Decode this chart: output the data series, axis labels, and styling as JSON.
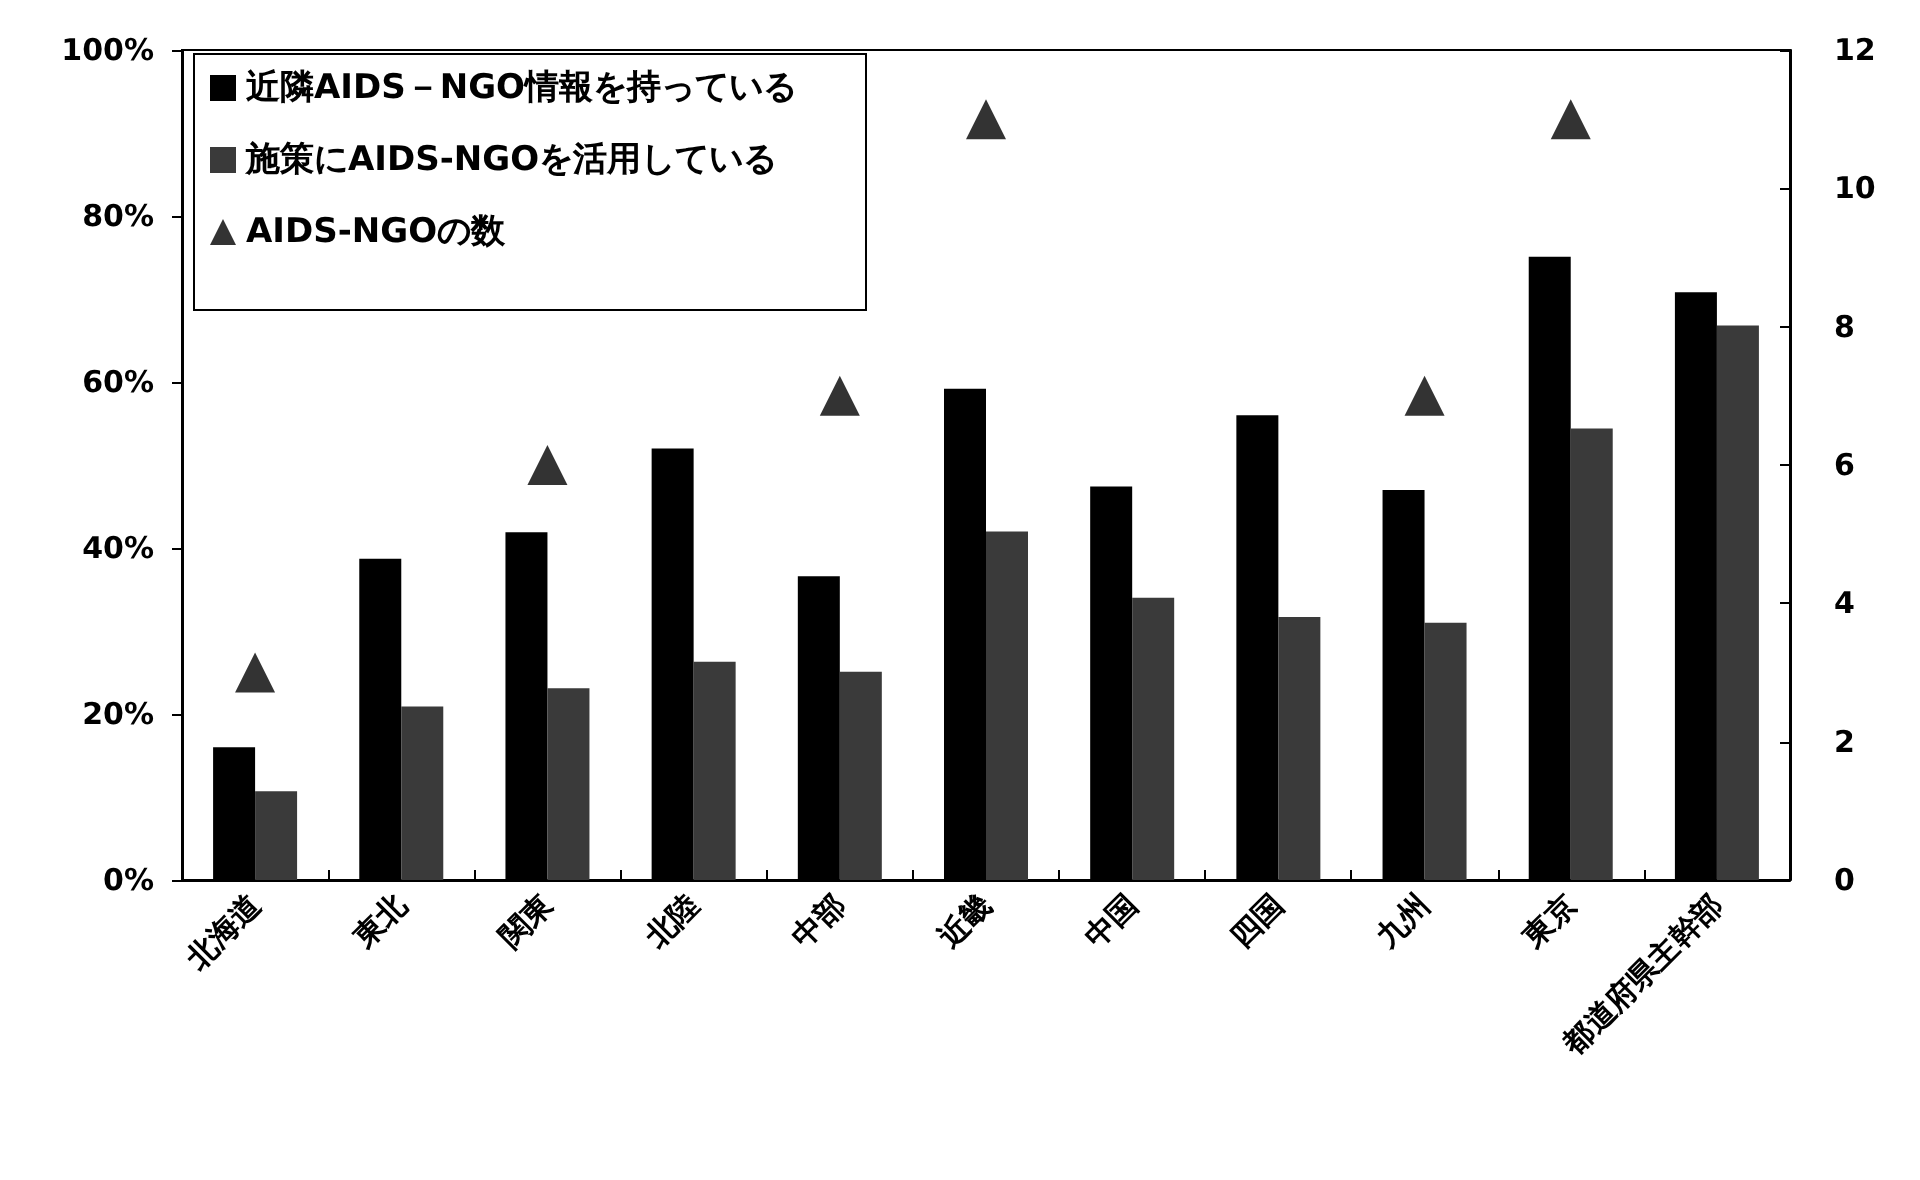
{
  "chart_data": {
    "type": "bar",
    "categories": [
      "北海道",
      "東北",
      "関東",
      "北陸",
      "中部",
      "近畿",
      "中国",
      "四国",
      "九州",
      "東京",
      "都道府県主幹部"
    ],
    "series": [
      {
        "name": "近隣AIDS－NGO情報を持っている",
        "color": "#000000",
        "values": [
          16,
          38.7,
          41.9,
          52,
          36.6,
          59.2,
          47.4,
          56,
          47,
          75.1,
          70.8
        ]
      },
      {
        "name": "施策にAIDS-NGOを活用している",
        "color": "#3a3a3a",
        "values": [
          10.7,
          20.9,
          23.1,
          26.3,
          25.1,
          42,
          34,
          31.7,
          31,
          54.4,
          66.8
        ]
      },
      {
        "name": "AIDS-NGOの数",
        "type": "scatter",
        "axis": "y2",
        "marker": "triangle",
        "color": "#000000",
        "values": [
          3,
          null,
          6,
          null,
          7,
          11,
          null,
          null,
          7,
          11,
          null
        ]
      }
    ],
    "ylim": [
      0,
      100
    ],
    "yticks": [
      {
        "value": 0,
        "label": "0%"
      },
      {
        "value": 20,
        "label": "20%"
      },
      {
        "value": 40,
        "label": "40%"
      },
      {
        "value": 60,
        "label": "60%"
      },
      {
        "value": 80,
        "label": "80%"
      },
      {
        "value": 100,
        "label": "100%"
      }
    ],
    "y2lim": [
      0,
      12
    ],
    "y2ticks": [
      0,
      2,
      4,
      6,
      8,
      10,
      12
    ],
    "grid": false,
    "legend": "top left"
  }
}
